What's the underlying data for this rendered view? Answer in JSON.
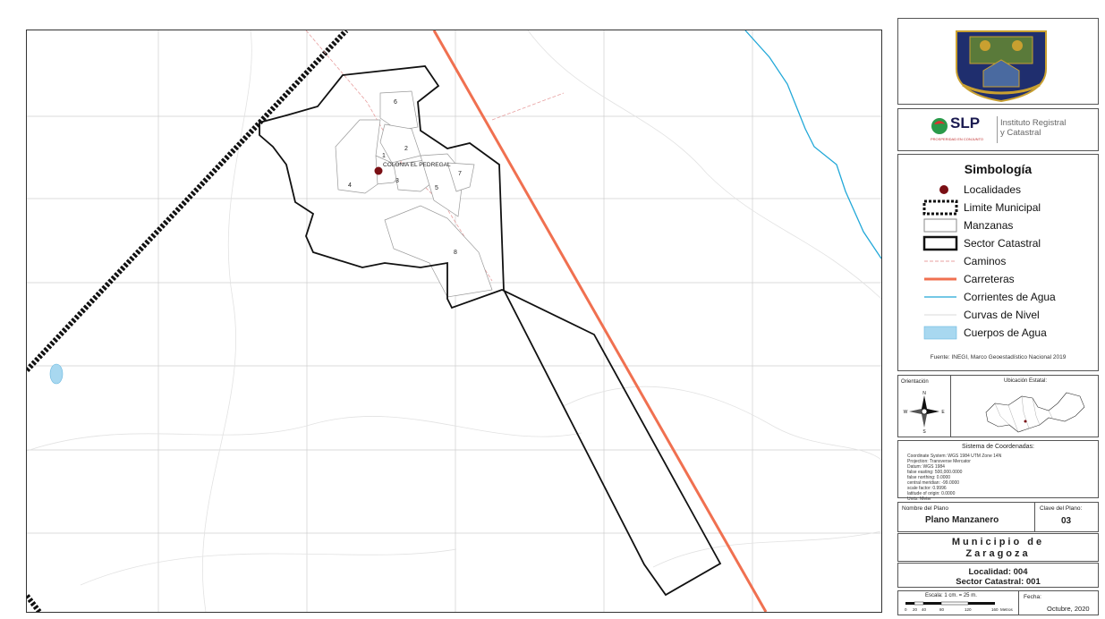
{
  "map": {
    "locality_label": "COLONIA EL PEDREGAL",
    "block_numbers": [
      "1",
      "2",
      "3",
      "4",
      "5",
      "6",
      "7",
      "8"
    ]
  },
  "legend": {
    "title": "Simbología",
    "items": [
      {
        "label": "Localidades",
        "symbol": "dot",
        "color": "#7a0f14"
      },
      {
        "label": "Limite Municipal",
        "symbol": "dashed-box",
        "color": "#111111"
      },
      {
        "label": "Manzanas",
        "symbol": "box",
        "color": "#888888"
      },
      {
        "label": "Sector Catastral",
        "symbol": "thick-box",
        "color": "#111111"
      },
      {
        "label": "Caminos",
        "symbol": "dash-line",
        "color": "#e8a0a0"
      },
      {
        "label": "Carreteras",
        "symbol": "line",
        "color": "#f07050"
      },
      {
        "label": "Corrientes de Agua",
        "symbol": "line",
        "color": "#22a8d8"
      },
      {
        "label": "Curvas de Nivel",
        "symbol": "line",
        "color": "#d8d8d8"
      },
      {
        "label": "Cuerpos de Agua",
        "symbol": "fill",
        "color": "#a8d8f0"
      }
    ],
    "source": "Fuente: INEGI, Marco Geoestadístico Nacional 2019"
  },
  "logo": {
    "brand": "SLP",
    "brand_sub": "PROSPERIDAD EN CONJUNTO",
    "institute": "Instituto Registral y Catastral",
    "institute_line1": "Instituto Registral",
    "institute_line2": "y Catastral"
  },
  "orientation": {
    "title": "Orientación",
    "n": "N",
    "s": "S",
    "e": "E",
    "w": "W"
  },
  "state_location": {
    "title": "Ubicación Estatal:"
  },
  "coordinate_system": {
    "title": "Sistema de Coordenadas:",
    "lines": [
      "Coordinate System: WGS 1984 UTM Zone 14N",
      "Projection: Transverse Mercator",
      "Datum: WGS 1984",
      "false easting: 500,000.0000",
      "false northing: 0.0000",
      "central meridian: -99.0000",
      "scale factor: 0.9996",
      "latitude of origin: 0.0000",
      "Units: Meter"
    ]
  },
  "plan": {
    "name_label": "Nombre del Plano",
    "name": "Plano Manzanero",
    "key_label": "Clave del Plano:",
    "key": "03",
    "municipio_line1": "Municipio de",
    "municipio_line2": "Zaragoza",
    "localidad": "Localidad: 004",
    "sector": "Sector Catastral: 001"
  },
  "scale": {
    "label": "Escala: 1 cm. = 25 m.",
    "ticks": [
      "0",
      "20",
      "40",
      "80",
      "120",
      "160"
    ],
    "unit": "Metros"
  },
  "date": {
    "label": "Fecha:",
    "value": "Octubre, 2020"
  }
}
